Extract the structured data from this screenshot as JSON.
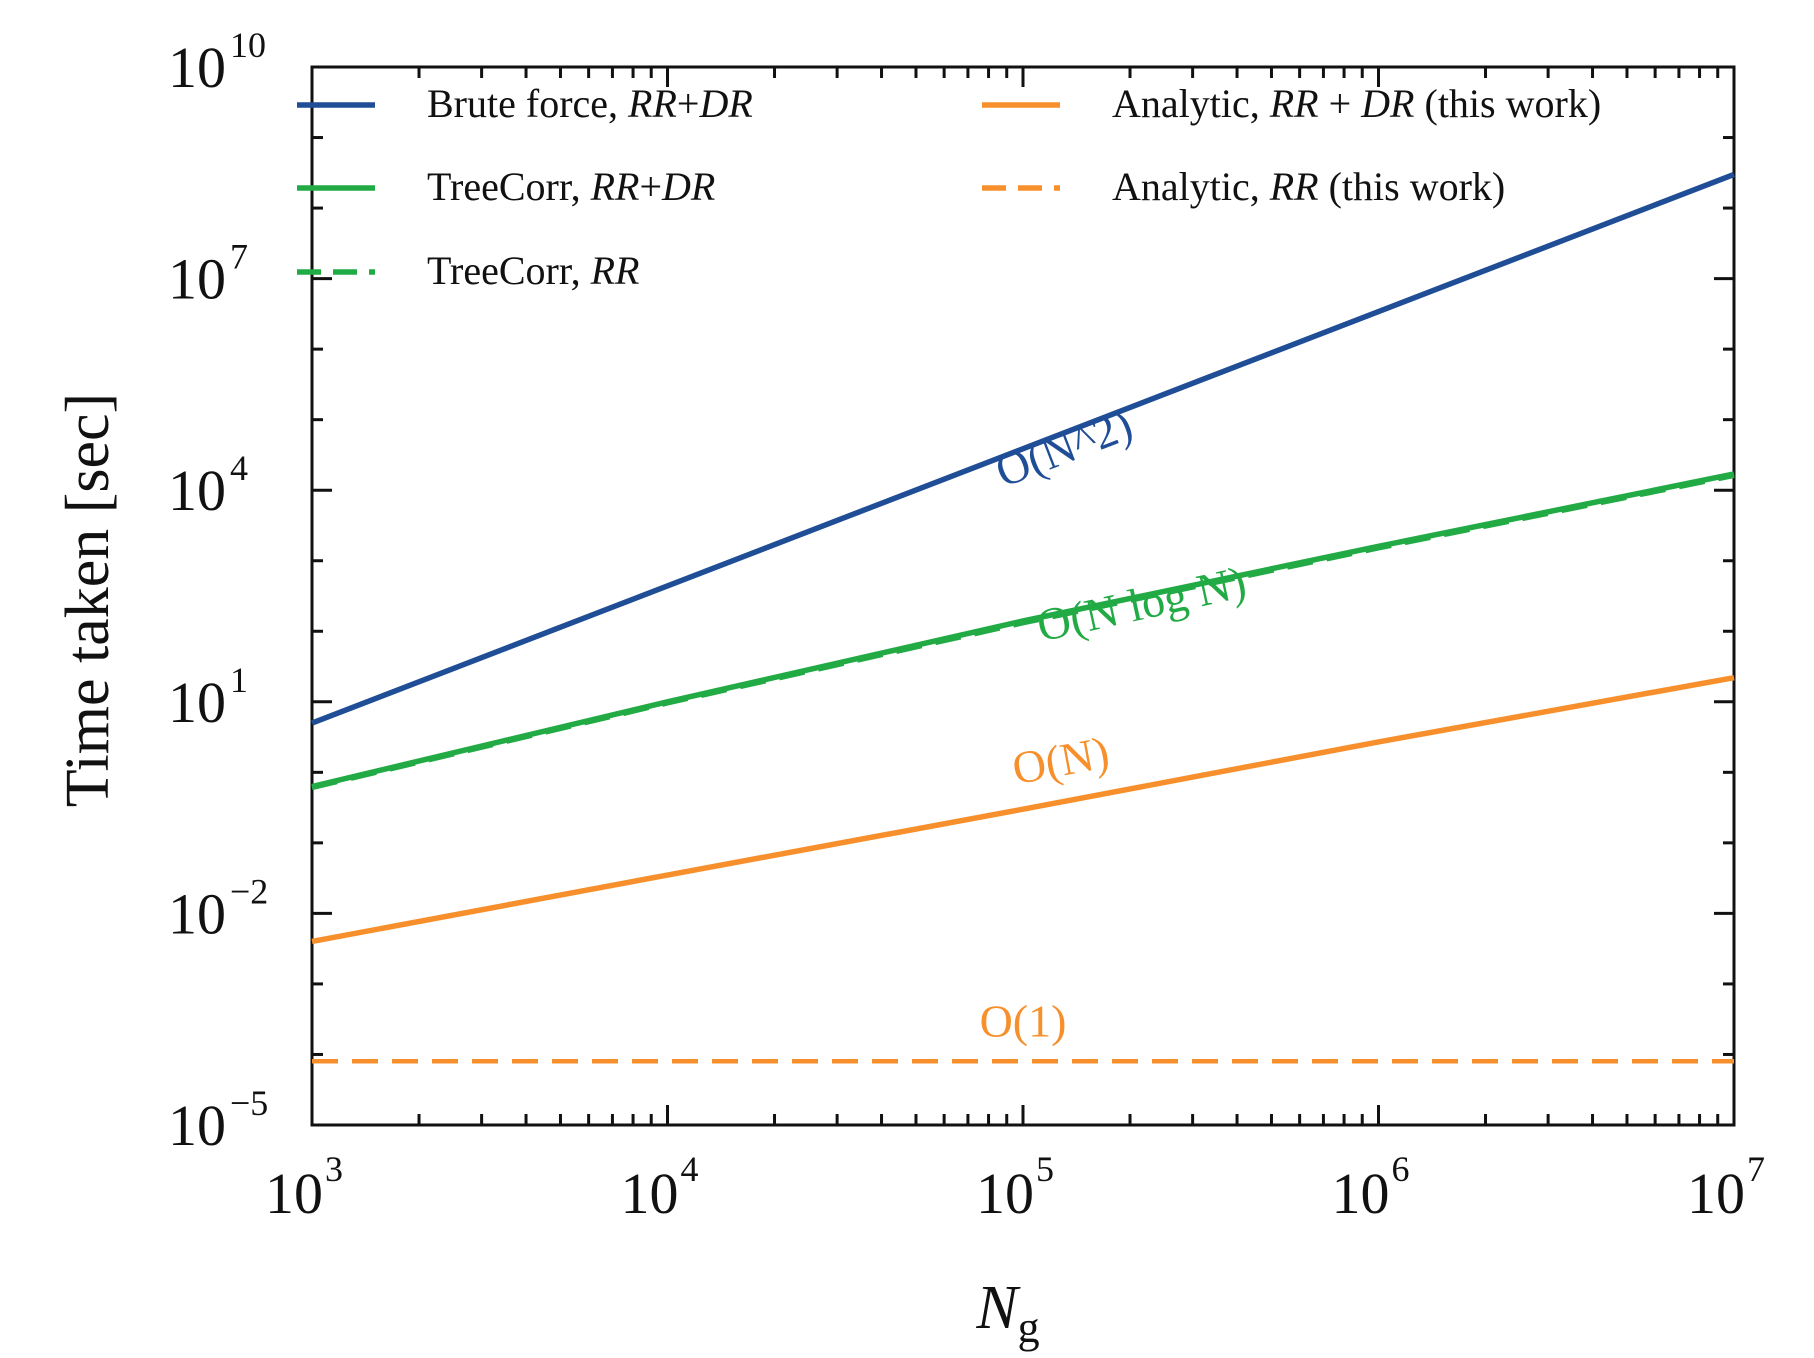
{
  "chart_data": {
    "type": "line",
    "xlabel": "N",
    "xlabel_sub": "g",
    "ylabel": "Time taken [sec]",
    "xscale": "log",
    "yscale": "log",
    "xlim": [
      1000,
      10000000
    ],
    "ylim": [
      1e-05,
      10000000000
    ],
    "x_ticks": [
      {
        "base": "10",
        "exp": "3",
        "value": 1000
      },
      {
        "base": "10",
        "exp": "4",
        "value": 10000
      },
      {
        "base": "10",
        "exp": "5",
        "value": 100000
      },
      {
        "base": "10",
        "exp": "6",
        "value": 1000000
      },
      {
        "base": "10",
        "exp": "7",
        "value": 10000000
      }
    ],
    "y_ticks": [
      {
        "base": "10",
        "exp": "−5",
        "value": 1e-05
      },
      {
        "base": "10",
        "exp": "−2",
        "value": 0.01
      },
      {
        "base": "10",
        "exp": "1",
        "value": 10
      },
      {
        "base": "10",
        "exp": "4",
        "value": 10000
      },
      {
        "base": "10",
        "exp": "7",
        "value": 10000000
      },
      {
        "base": "10",
        "exp": "10",
        "value": 10000000000
      }
    ],
    "grid": false,
    "legend_position": "top",
    "series": [
      {
        "name": "Brute force, RR+DR",
        "legend_parts": [
          [
            "Brute force, ",
            false
          ],
          [
            "RR",
            true
          ],
          [
            "+",
            false
          ],
          [
            "DR",
            true
          ]
        ],
        "color": "#1f4e96",
        "dash": "solid",
        "x": [
          1000,
          10000000
        ],
        "y": [
          5,
          300000000
        ]
      },
      {
        "name": "TreeCorr, RR+DR",
        "legend_parts": [
          [
            "TreeCorr, ",
            false
          ],
          [
            "RR",
            true
          ],
          [
            "+",
            false
          ],
          [
            "DR",
            true
          ]
        ],
        "color": "#22aa44",
        "dash": "solid",
        "x": [
          1000,
          10000,
          100000,
          1000000,
          10000000
        ],
        "y": [
          0.63,
          10,
          140,
          1600,
          17000
        ]
      },
      {
        "name": "TreeCorr, RR",
        "legend_parts": [
          [
            "TreeCorr, ",
            false
          ],
          [
            "RR",
            true
          ]
        ],
        "color": "#22aa44",
        "dash": "dashed",
        "x": [
          1000,
          10000,
          100000,
          1000000,
          10000000
        ],
        "y": [
          0.6,
          9.5,
          130,
          1500,
          16000
        ]
      },
      {
        "name": "Analytic, RR + DR (this work)",
        "legend_parts": [
          [
            "Analytic, ",
            false
          ],
          [
            "RR",
            true
          ],
          [
            " + ",
            false
          ],
          [
            "DR",
            true
          ],
          [
            " (this work)",
            false
          ]
        ],
        "color": "#f7902c",
        "dash": "solid",
        "x": [
          1000,
          10000,
          100000,
          1000000,
          10000000
        ],
        "y": [
          0.004,
          0.035,
          0.3,
          2.7,
          22
        ]
      },
      {
        "name": "Analytic, RR (this work)",
        "legend_parts": [
          [
            "Analytic, ",
            false
          ],
          [
            "RR",
            true
          ],
          [
            " (this work)",
            false
          ]
        ],
        "color": "#f7902c",
        "dash": "dashed",
        "x": [
          1000,
          10000000
        ],
        "y": [
          8e-05,
          8e-05
        ]
      }
    ],
    "annotations": [
      {
        "text": "O(N^2)",
        "color": "#1f4e96",
        "x": 135000,
        "y": 25000,
        "angle_series": 0
      },
      {
        "text": "O(N log N)",
        "color": "#22aa44",
        "x": 220000,
        "y": 150,
        "angle_series": 1
      },
      {
        "text": "O(N)",
        "color": "#f7902c",
        "x": 130000,
        "y": 0.9,
        "angle_series": 3
      },
      {
        "text": "O(1)",
        "color": "#f7902c",
        "x": 100000,
        "y": 0.00018,
        "angle_series": 4
      }
    ]
  }
}
